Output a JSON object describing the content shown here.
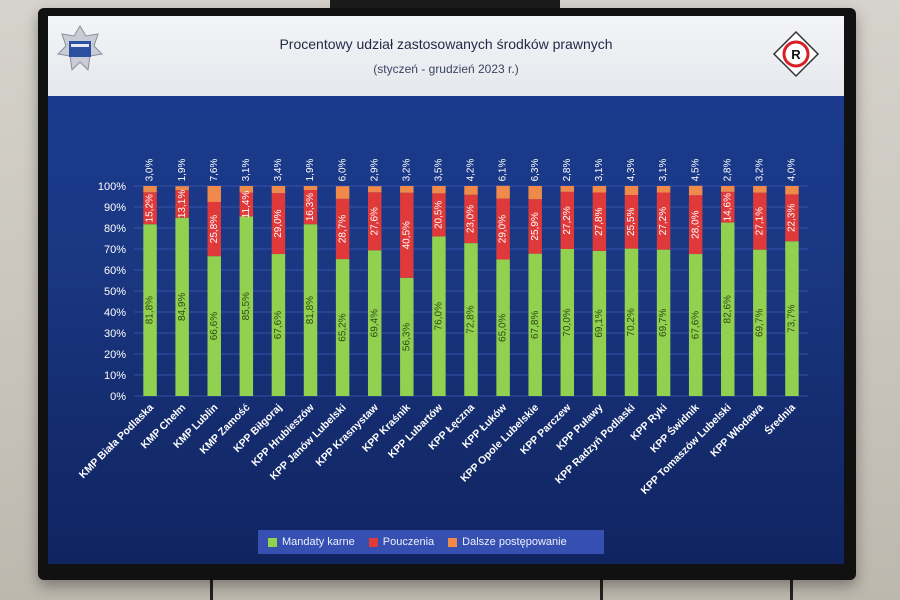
{
  "chart_data": {
    "type": "bar",
    "stacked": true,
    "title": "Procentowy udział zastosowanych środków prawnych",
    "subtitle": "(styczeń - grudzień 2023 r.)",
    "categories": [
      "KMP Biała Podlaska",
      "KMP Chełm",
      "KMP Lublin",
      "KMP Zamość",
      "KPP Biłgoraj",
      "KPP Hrubieszów",
      "KPP Janów Lubelski",
      "KPP Krasnystaw",
      "KPP Kraśnik",
      "KPP Lubartów",
      "KPP Łęczna",
      "KPP Łuków",
      "KPP Opole Lubelskie",
      "KPP Parczew",
      "KPP Puławy",
      "KPP Radzyń Podlaski",
      "KPP Ryki",
      "KPP Świdnik",
      "KPP Tomaszów Lubelski",
      "KPP Włodawa",
      "Średnia"
    ],
    "series": [
      {
        "name": "Mandaty karne",
        "color": "#92d050",
        "values": [
          81.8,
          84.9,
          66.6,
          85.5,
          67.6,
          81.8,
          65.2,
          69.4,
          56.3,
          76.0,
          72.8,
          65.0,
          67.8,
          70.0,
          69.1,
          70.2,
          69.7,
          67.6,
          82.6,
          69.7,
          73.7
        ],
        "labels": [
          "81,8%",
          "84,9%",
          "66,6%",
          "85,5%",
          "67,6%",
          "81,8%",
          "65,2%",
          "69,4%",
          "56,3%",
          "76,0%",
          "72,8%",
          "65,0%",
          "67,8%",
          "70,0%",
          "69,1%",
          "70,2%",
          "69,7%",
          "67,6%",
          "82,6%",
          "69,7%",
          "73,7%"
        ]
      },
      {
        "name": "Pouczenia",
        "color": "#e0393a",
        "values": [
          15.2,
          13.1,
          25.8,
          11.4,
          29.0,
          16.3,
          28.7,
          27.6,
          40.5,
          20.5,
          23.0,
          29.0,
          25.9,
          27.2,
          27.8,
          25.5,
          27.2,
          28.0,
          14.6,
          27.1,
          22.3
        ],
        "labels": [
          "15,2%",
          "13,1%",
          "25,8%",
          "11,4%",
          "29,0%",
          "16,3%",
          "28,7%",
          "27,6%",
          "40,5%",
          "20,5%",
          "23,0%",
          "29,0%",
          "25,9%",
          "27,2%",
          "27,8%",
          "25,5%",
          "27,2%",
          "28,0%",
          "14,6%",
          "27,1%",
          "22,3%"
        ]
      },
      {
        "name": "Dalsze postępowanie",
        "color": "#f08a4b",
        "values": [
          3.0,
          1.9,
          7.6,
          3.1,
          3.4,
          1.9,
          6.0,
          2.9,
          3.2,
          3.5,
          4.2,
          6.1,
          6.3,
          2.8,
          3.1,
          4.3,
          3.1,
          4.5,
          2.8,
          3.2,
          4.0
        ],
        "labels": [
          "3,0%",
          "1,9%",
          "7,6%",
          "3,1%",
          "3,4%",
          "1,9%",
          "6,0%",
          "2,9%",
          "3,2%",
          "3,5%",
          "4,2%",
          "6,1%",
          "6,3%",
          "2,8%",
          "3,1%",
          "4,3%",
          "3,1%",
          "4,5%",
          "2,8%",
          "3,2%",
          "4,0%"
        ]
      }
    ],
    "yticks": [
      "0%",
      "10%",
      "20%",
      "30%",
      "40%",
      "50%",
      "60%",
      "70%",
      "80%",
      "90%",
      "100%"
    ],
    "ylim": [
      0,
      100
    ],
    "grid": true,
    "legend_position": "bottom"
  }
}
